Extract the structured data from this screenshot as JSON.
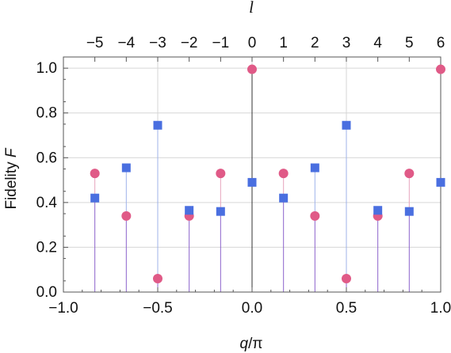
{
  "chart_data": {
    "type": "scatter",
    "title": "",
    "xlabel_italic": "q",
    "xlabel_rest": "/π",
    "ylabel_text": "Fidelity ",
    "ylabel_italic": "F",
    "top_axis_label": "l",
    "xlim": [
      -1.0,
      1.0
    ],
    "ylim": [
      0.0,
      1.05
    ],
    "x_ticks": [
      -1.0,
      -0.5,
      0.0,
      0.5,
      1.0
    ],
    "x_tick_labels": [
      "−1.0",
      "−0.5",
      "0.0",
      "0.5",
      "1.0"
    ],
    "y_ticks": [
      0.0,
      0.2,
      0.4,
      0.6,
      0.8,
      1.0
    ],
    "y_tick_labels": [
      "0.0",
      "0.2",
      "0.4",
      "0.6",
      "0.8",
      "1.0"
    ],
    "top_ticks": [
      -5,
      -4,
      -3,
      -2,
      -1,
      0,
      1,
      2,
      3,
      4,
      5,
      6
    ],
    "top_tick_labels": [
      "−5",
      "−4",
      "−3",
      "−2",
      "−1",
      "0",
      "1",
      "2",
      "3",
      "4",
      "5",
      "6"
    ],
    "top_tick_scale": 6,
    "grid": true,
    "colors": {
      "circle_fill": "#e05a87",
      "circle_stem": "#e7a4bd",
      "square_fill": "#4a6fe0",
      "square_stem": "#9fb3ea",
      "overlap_stem": "#8c62cc",
      "zero_stem": "#333333",
      "grid": "#d6d6d6",
      "frame": "#555555"
    },
    "series": [
      {
        "marker": "circle",
        "x": [
          -0.8333,
          -0.6667,
          -0.5,
          -0.3333,
          -0.1667,
          0.0,
          0.1667,
          0.3333,
          0.5,
          0.6667,
          0.8333,
          1.0
        ],
        "y": [
          0.53,
          0.34,
          0.06,
          0.34,
          0.53,
          0.995,
          0.53,
          0.34,
          0.06,
          0.34,
          0.53,
          0.995
        ]
      },
      {
        "marker": "square",
        "x": [
          -0.8333,
          -0.6667,
          -0.5,
          -0.3333,
          -0.1667,
          0.0,
          0.1667,
          0.3333,
          0.5,
          0.6667,
          0.8333,
          1.0
        ],
        "y": [
          0.42,
          0.555,
          0.745,
          0.365,
          0.36,
          0.49,
          0.42,
          0.555,
          0.745,
          0.365,
          0.36,
          0.49
        ]
      }
    ]
  }
}
